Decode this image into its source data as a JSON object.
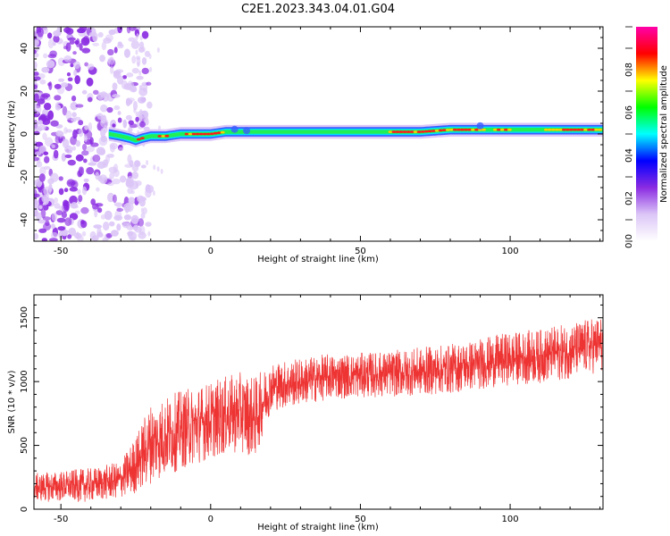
{
  "title": "C2E1.2023.343.04.01.G04",
  "chart_data": [
    {
      "type": "heatmap",
      "name": "spectrogram",
      "xlabel": "Height of straight line (km)",
      "ylabel": "Frequency (Hz)",
      "xlim": [
        -59,
        131
      ],
      "ylim": [
        -50,
        50
      ],
      "xticks": [
        -50,
        0,
        50,
        100
      ],
      "yticks": [
        -40,
        -20,
        0,
        20,
        40
      ],
      "colorbar": {
        "label": "Normalized spectral amplitude",
        "range": [
          0,
          1
        ],
        "ticks": [
          0.0,
          0.2,
          0.4,
          0.6,
          0.8
        ],
        "colormap": [
          "#ffffff",
          "#dcc6f7",
          "#8a2be2",
          "#0000ff",
          "#00ffff",
          "#00ff00",
          "#ffff00",
          "#ff0000",
          "#ff00aa"
        ]
      },
      "signal_trace": {
        "x": [
          -34,
          -30,
          -27,
          -25,
          -23,
          -20,
          -15,
          -10,
          -5,
          0,
          5,
          10,
          15,
          20,
          30,
          40,
          50,
          60,
          70,
          80,
          90,
          100,
          110,
          120,
          131
        ],
        "frequency": [
          0,
          -1,
          -2,
          -3,
          -2,
          -1,
          -1,
          0,
          0,
          0,
          1,
          1,
          1,
          1,
          1,
          1,
          1,
          1,
          1,
          2,
          2,
          2,
          2,
          2,
          2
        ]
      },
      "noise_region_x": [
        -59,
        -26
      ]
    },
    {
      "type": "line",
      "name": "snr",
      "xlabel": "Height of straight line (km)",
      "ylabel": "SNR (10 * v/v)",
      "xlim": [
        -59,
        131
      ],
      "ylim": [
        0,
        1680
      ],
      "xticks": [
        -50,
        0,
        50,
        100
      ],
      "yticks": [
        0,
        500,
        1000,
        1500
      ],
      "color": "#ee3333",
      "trend": {
        "x": [
          -59,
          -40,
          -30,
          -25,
          -20,
          -10,
          0,
          10,
          15,
          20,
          30,
          40,
          50,
          60,
          70,
          80,
          90,
          100,
          110,
          120,
          131
        ],
        "y": [
          170,
          190,
          230,
          350,
          520,
          620,
          700,
          760,
          720,
          960,
          1000,
          1040,
          1050,
          1060,
          1080,
          1100,
          1140,
          1180,
          1200,
          1240,
          1300
        ]
      },
      "spread": {
        "x": [
          -59,
          -30,
          -20,
          0,
          15,
          20,
          50,
          100,
          131
        ],
        "y": [
          70,
          90,
          200,
          190,
          200,
          120,
          110,
          130,
          140
        ]
      }
    }
  ]
}
